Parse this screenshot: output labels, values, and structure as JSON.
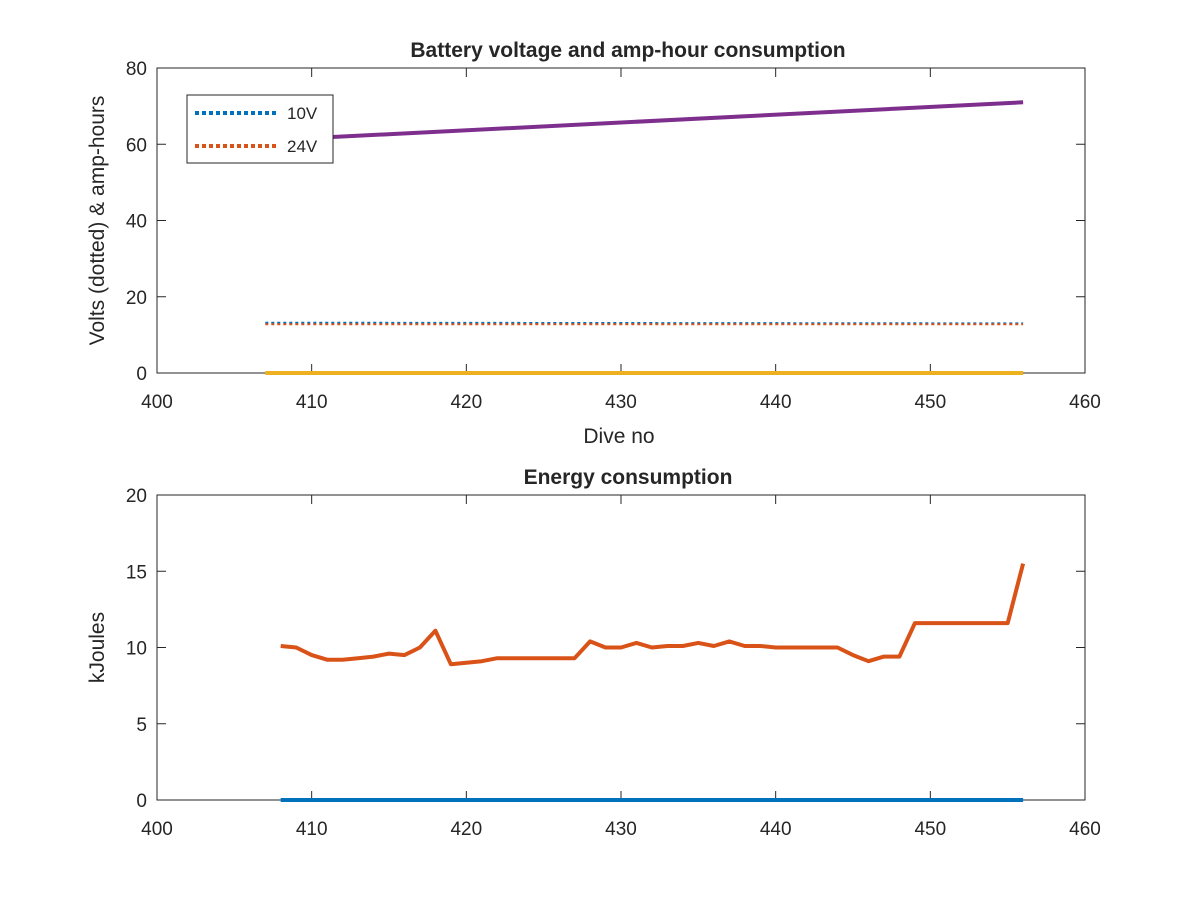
{
  "chart_data": [
    {
      "type": "line",
      "title": "Battery voltage and amp-hour consumption",
      "xlabel": "Dive no",
      "ylabel": "Volts (dotted) & amp-hours",
      "xlim": [
        400,
        460
      ],
      "ylim": [
        0,
        80
      ],
      "xticks": [
        "400",
        "410",
        "420",
        "430",
        "440",
        "450",
        "460"
      ],
      "yticks": [
        "0",
        "20",
        "40",
        "60",
        "80"
      ],
      "legend": {
        "placement": "top-left",
        "entries": [
          "10V",
          "24V"
        ]
      },
      "grid": false,
      "series": [
        {
          "name": "10V",
          "style": "dotted",
          "color": "#0072BD",
          "x": [
            407,
            456
          ],
          "y": [
            13.2,
            13.0
          ]
        },
        {
          "name": "24V",
          "style": "dotted",
          "color": "#D95319",
          "x": [
            407,
            456
          ],
          "y": [
            12.8,
            12.8
          ]
        },
        {
          "style": "solid",
          "color": "#EDB120",
          "x": [
            407,
            456
          ],
          "y": [
            0,
            0
          ]
        },
        {
          "style": "solid",
          "color": "#7E2F8E",
          "x": [
            407,
            456
          ],
          "y": [
            61,
            71
          ]
        }
      ]
    },
    {
      "type": "line",
      "title": "Energy consumption",
      "xlabel": "",
      "ylabel": "kJoules",
      "xlim": [
        400,
        460
      ],
      "ylim": [
        0,
        20
      ],
      "xticks": [
        "400",
        "410",
        "420",
        "430",
        "440",
        "450",
        "460"
      ],
      "yticks": [
        "0",
        "5",
        "10",
        "15",
        "20"
      ],
      "grid": false,
      "series": [
        {
          "style": "solid",
          "color": "#0072BD",
          "x": [
            408,
            456
          ],
          "y": [
            0,
            0
          ]
        },
        {
          "style": "solid",
          "color": "#D95319",
          "x": [
            408,
            409,
            410,
            411,
            412,
            413,
            414,
            415,
            416,
            417,
            418,
            419,
            420,
            421,
            422,
            423,
            424,
            425,
            426,
            427,
            428,
            429,
            430,
            431,
            432,
            433,
            434,
            435,
            436,
            437,
            438,
            439,
            440,
            441,
            442,
            443,
            444,
            445,
            446,
            447,
            448,
            449,
            450,
            451,
            452,
            453,
            454,
            455,
            456
          ],
          "y": [
            10.1,
            10.0,
            9.5,
            9.2,
            9.2,
            9.3,
            9.4,
            9.6,
            9.5,
            10.0,
            11.1,
            8.9,
            9.0,
            9.1,
            9.3,
            9.3,
            9.3,
            9.3,
            9.3,
            9.3,
            10.4,
            10.0,
            10.0,
            10.3,
            10.0,
            10.1,
            10.1,
            10.3,
            10.1,
            10.4,
            10.1,
            10.1,
            10.0,
            10.0,
            10.0,
            10.0,
            10.0,
            9.5,
            9.1,
            9.4,
            9.4,
            11.6,
            11.6,
            11.6,
            11.6,
            11.6,
            11.6,
            11.6,
            15.5
          ]
        }
      ]
    }
  ]
}
